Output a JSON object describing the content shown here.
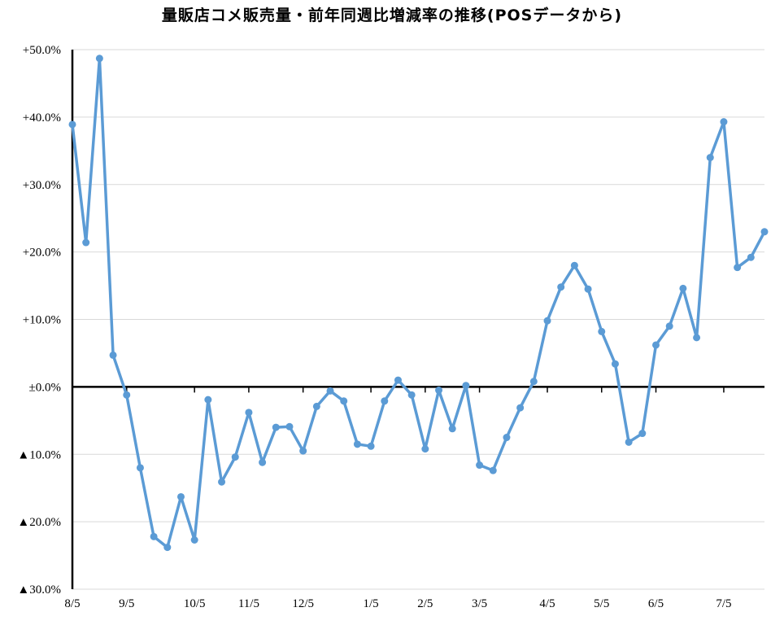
{
  "chart_data": {
    "type": "line",
    "title": "量販店コメ販売量・前年同週比増減率の推移(POSデータから)",
    "xlabel": "",
    "ylabel": "",
    "ylim": [
      -30,
      50
    ],
    "y_ticks": [
      50,
      40,
      30,
      20,
      10,
      0,
      -10,
      -20,
      -30
    ],
    "y_tick_labels": [
      "+50.0%",
      "+40.0%",
      "+30.0%",
      "+20.0%",
      "+10.0%",
      "±0.0%",
      "▲10.0%",
      "▲20.0%",
      "▲30.0%"
    ],
    "x_tick_labels": [
      "8/5",
      "9/5",
      "10/5",
      "11/5",
      "12/5",
      "1/5",
      "2/5",
      "3/5",
      "4/5",
      "5/5",
      "6/5",
      "7/5"
    ],
    "x_tick_week_index": [
      0,
      4,
      9,
      13,
      17,
      22,
      26,
      30,
      35,
      39,
      43,
      48
    ],
    "grid": true,
    "legend": "none",
    "line_color": "#5B9BD5",
    "series": [
      {
        "values": [
          38.9,
          21.4,
          48.7,
          4.7,
          -1.2,
          -12.0,
          -22.2,
          -23.8,
          -16.3,
          -22.7,
          -1.9,
          -14.1,
          -10.4,
          -3.8,
          -11.2,
          -6.0,
          -5.9,
          -9.5,
          -2.9,
          -0.6,
          -2.1,
          -8.5,
          -8.8,
          -2.1,
          1.0,
          -1.2,
          -9.2,
          -0.5,
          -6.2,
          0.2,
          -11.6,
          -12.4,
          -7.5,
          -3.1,
          0.8,
          9.8,
          14.8,
          18.0,
          14.5,
          8.2,
          3.4,
          -8.2,
          -6.9,
          6.2,
          9.0,
          14.6,
          7.3,
          34.0,
          39.3,
          17.7,
          19.2,
          23.0
        ]
      }
    ]
  }
}
